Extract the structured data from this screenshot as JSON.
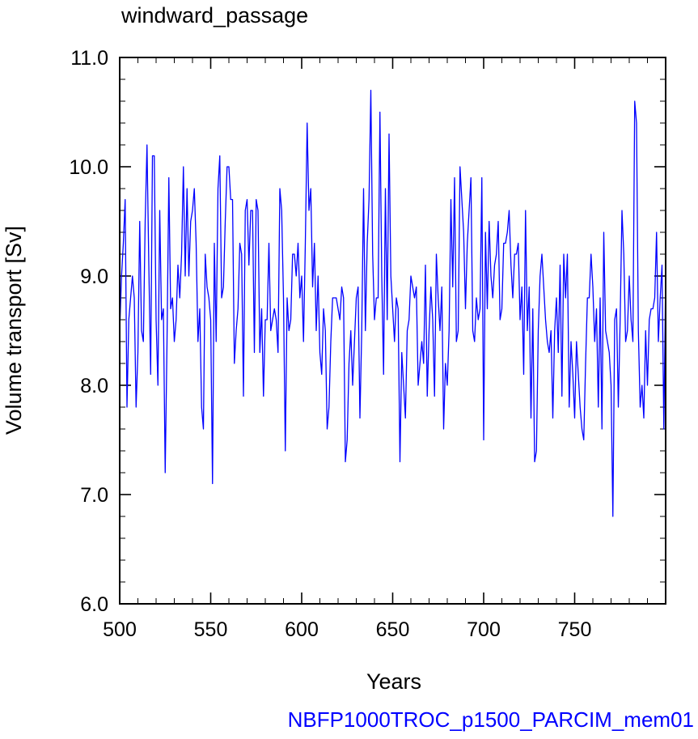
{
  "chart_data": {
    "type": "line",
    "title": "windward_passage",
    "xlabel": "Years",
    "ylabel": "Volume transport [Sv]",
    "caption": "NBFP1000TROC_p1500_PARCIM_mem01",
    "xlim": [
      500,
      800
    ],
    "ylim": [
      6.0,
      11.0
    ],
    "x_ticks": [
      500,
      550,
      600,
      650,
      700,
      750
    ],
    "x_tick_labels": [
      "500",
      "550",
      "600",
      "650",
      "700",
      "750"
    ],
    "x_minor_step": 10,
    "y_ticks": [
      6.0,
      7.0,
      8.0,
      9.0,
      10.0,
      11.0
    ],
    "y_tick_labels": [
      "6.0",
      "7.0",
      "8.0",
      "9.0",
      "10.0",
      "11.0"
    ],
    "y_minor_step": 0.2,
    "grid": false,
    "series": [
      {
        "color": "#0000ff",
        "x_start": 500,
        "x_step": 1,
        "values": [
          8.5,
          9.0,
          9.3,
          9.7,
          7.8,
          8.6,
          8.8,
          9.0,
          8.8,
          7.8,
          8.3,
          9.5,
          8.5,
          8.4,
          9.5,
          10.2,
          9.1,
          8.1,
          10.1,
          10.1,
          8.6,
          8.0,
          9.6,
          8.6,
          8.7,
          7.2,
          8.4,
          9.9,
          8.7,
          8.8,
          8.4,
          8.6,
          9.1,
          8.8,
          9.2,
          10.0,
          9.0,
          9.8,
          9.0,
          9.5,
          9.6,
          9.8,
          9.3,
          8.4,
          8.7,
          7.8,
          7.6,
          9.2,
          8.9,
          8.8,
          8.6,
          7.1,
          9.3,
          8.4,
          9.8,
          10.1,
          8.8,
          8.9,
          9.5,
          10.0,
          10.0,
          9.7,
          9.7,
          8.2,
          8.5,
          8.7,
          9.3,
          9.2,
          7.9,
          9.6,
          9.7,
          9.1,
          9.6,
          9.6,
          8.3,
          9.7,
          9.6,
          8.3,
          8.7,
          7.9,
          8.6,
          8.6,
          9.3,
          8.5,
          8.6,
          8.7,
          8.6,
          8.3,
          9.8,
          9.6,
          8.8,
          7.4,
          8.8,
          8.5,
          8.6,
          9.2,
          9.2,
          9.0,
          9.3,
          8.8,
          9.0,
          8.4,
          9.3,
          10.4,
          9.6,
          9.8,
          8.9,
          9.3,
          8.5,
          9.0,
          8.3,
          8.1,
          8.7,
          8.5,
          7.6,
          7.8,
          8.4,
          8.8,
          8.8,
          8.8,
          8.7,
          8.6,
          8.9,
          8.8,
          7.3,
          7.5,
          8.2,
          8.5,
          8.0,
          8.4,
          8.8,
          8.9,
          7.7,
          8.5,
          9.8,
          8.5,
          9.3,
          9.7,
          10.7,
          9.2,
          8.6,
          8.8,
          8.8,
          10.5,
          9.0,
          8.1,
          9.8,
          8.6,
          10.3,
          9.0,
          8.7,
          8.4,
          8.8,
          8.7,
          7.3,
          8.3,
          8.0,
          7.7,
          8.5,
          8.6,
          9.0,
          8.9,
          8.8,
          8.9,
          8.0,
          8.2,
          8.4,
          8.2,
          9.1,
          7.9,
          8.5,
          8.9,
          8.6,
          7.9,
          9.2,
          8.8,
          8.5,
          8.9,
          7.6,
          8.2,
          8.0,
          8.5,
          9.7,
          8.9,
          9.9,
          8.4,
          8.5,
          10.0,
          9.7,
          9.4,
          8.7,
          9.3,
          9.6,
          9.9,
          8.5,
          8.4,
          8.8,
          8.6,
          8.7,
          9.9,
          7.5,
          9.4,
          8.7,
          9.5,
          9.0,
          8.8,
          9.1,
          9.2,
          9.5,
          8.6,
          8.7,
          9.3,
          9.3,
          9.4,
          9.6,
          9.1,
          8.8,
          9.2,
          9.2,
          9.3,
          8.6,
          8.9,
          8.1,
          9.6,
          8.5,
          8.9,
          7.7,
          8.7,
          7.3,
          7.4,
          8.5,
          9.0,
          9.2,
          8.9,
          8.6,
          8.4,
          8.3,
          8.5,
          7.7,
          8.5,
          8.8,
          8.3,
          9.1,
          7.9,
          9.2,
          8.8,
          9.2,
          7.8,
          8.4,
          8.1,
          7.7,
          8.4,
          8.1,
          7.8,
          7.6,
          7.5,
          8.2,
          8.8,
          8.8,
          9.2,
          8.9,
          8.4,
          8.7,
          7.8,
          8.8,
          7.6,
          9.4,
          8.5,
          8.4,
          8.3,
          8.0,
          6.8,
          8.6,
          8.7,
          7.8,
          8.6,
          9.6,
          9.2,
          8.4,
          8.5,
          9.0,
          8.6,
          8.4,
          10.6,
          10.4,
          8.5,
          7.8,
          8.0,
          7.7,
          8.5,
          8.0,
          8.6,
          8.7,
          8.7,
          8.8,
          9.4,
          8.4,
          8.8,
          9.1,
          7.6,
          9.0
        ]
      }
    ]
  }
}
